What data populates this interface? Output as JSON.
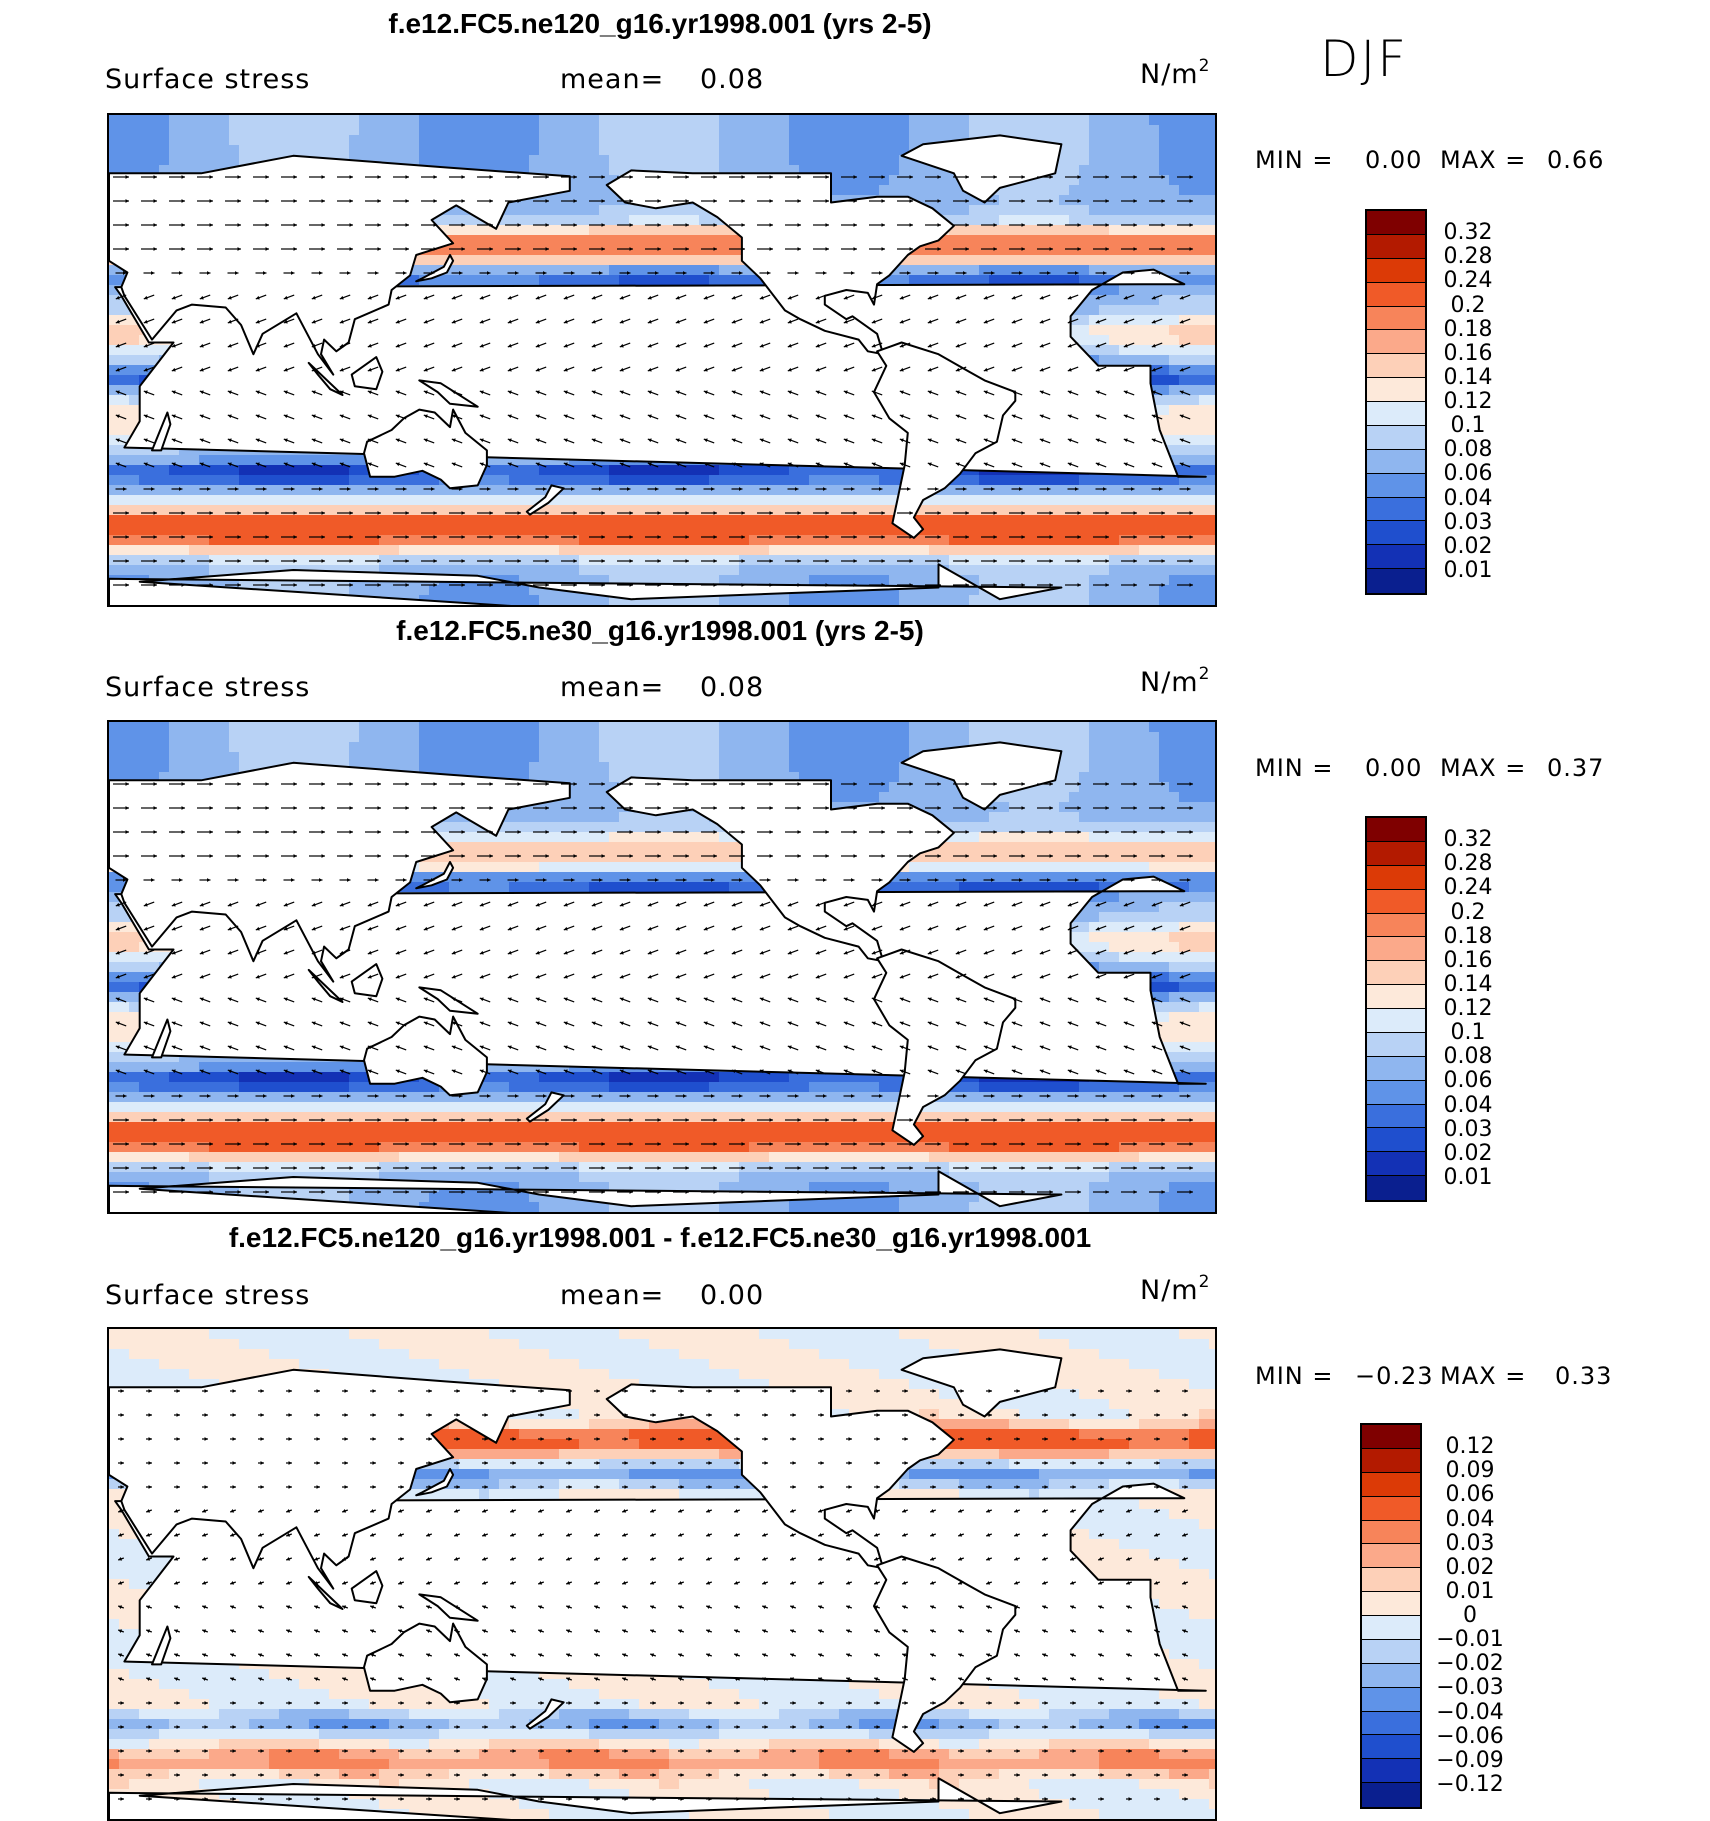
{
  "season_label": "DJF",
  "chart_data": [
    {
      "type": "heatmap",
      "title": "f.e12.FC5.ne120_g16.yr1998.001 (yrs 2-5)",
      "variable": "Surface stress",
      "mean_label": "mean=",
      "mean_value": "0.08",
      "units": "N/m",
      "units_exp": "2",
      "min_label": "MIN =",
      "min_value": "0.00",
      "max_label": "MAX =",
      "max_value": "0.66",
      "colorbar_levels": [
        "0.32",
        "0.28",
        "0.24",
        "0.2",
        "0.18",
        "0.16",
        "0.14",
        "0.12",
        "0.1",
        "0.08",
        "0.06",
        "0.04",
        "0.03",
        "0.02",
        "0.01"
      ],
      "colorbar_colors": [
        "#7f0000",
        "#b31a00",
        "#dc3a06",
        "#f05a28",
        "#f7845a",
        "#fba98a",
        "#fdd0b8",
        "#fde9da",
        "#dcebfa",
        "#b8d2f5",
        "#8fb6ef",
        "#5f93e8",
        "#3a6fdd",
        "#1f4fce",
        "#1331b5",
        "#0a1f8f"
      ]
    },
    {
      "type": "heatmap",
      "title": "f.e12.FC5.ne30_g16.yr1998.001 (yrs 2-5)",
      "variable": "Surface stress",
      "mean_label": "mean=",
      "mean_value": "0.08",
      "units": "N/m",
      "units_exp": "2",
      "min_label": "MIN =",
      "min_value": "0.00",
      "max_label": "MAX =",
      "max_value": "0.37",
      "colorbar_levels": [
        "0.32",
        "0.28",
        "0.24",
        "0.2",
        "0.18",
        "0.16",
        "0.14",
        "0.12",
        "0.1",
        "0.08",
        "0.06",
        "0.04",
        "0.03",
        "0.02",
        "0.01"
      ],
      "colorbar_colors": [
        "#7f0000",
        "#b31a00",
        "#dc3a06",
        "#f05a28",
        "#f7845a",
        "#fba98a",
        "#fdd0b8",
        "#fde9da",
        "#dcebfa",
        "#b8d2f5",
        "#8fb6ef",
        "#5f93e8",
        "#3a6fdd",
        "#1f4fce",
        "#1331b5",
        "#0a1f8f"
      ]
    },
    {
      "type": "heatmap",
      "title": "f.e12.FC5.ne120_g16.yr1998.001 - f.e12.FC5.ne30_g16.yr1998.001",
      "variable": "Surface stress",
      "mean_label": "mean=",
      "mean_value": "0.00",
      "units": "N/m",
      "units_exp": "2",
      "min_label": "MIN =",
      "min_value": "−0.23",
      "max_label": "MAX =",
      "max_value": "0.33",
      "colorbar_levels": [
        "0.12",
        "0.09",
        "0.06",
        "0.04",
        "0.03",
        "0.02",
        "0.01",
        "0",
        "−0.01",
        "−0.02",
        "−0.03",
        "−0.04",
        "−0.06",
        "−0.09",
        "−0.12"
      ],
      "colorbar_colors": [
        "#7f0000",
        "#b31a00",
        "#dc3a06",
        "#f05a28",
        "#f7845a",
        "#fba98a",
        "#fdd0b8",
        "#fde9da",
        "#dcebfa",
        "#b8d2f5",
        "#8fb6ef",
        "#5f93e8",
        "#3a6fdd",
        "#1f4fce",
        "#1331b5",
        "#0a1f8f"
      ]
    }
  ]
}
